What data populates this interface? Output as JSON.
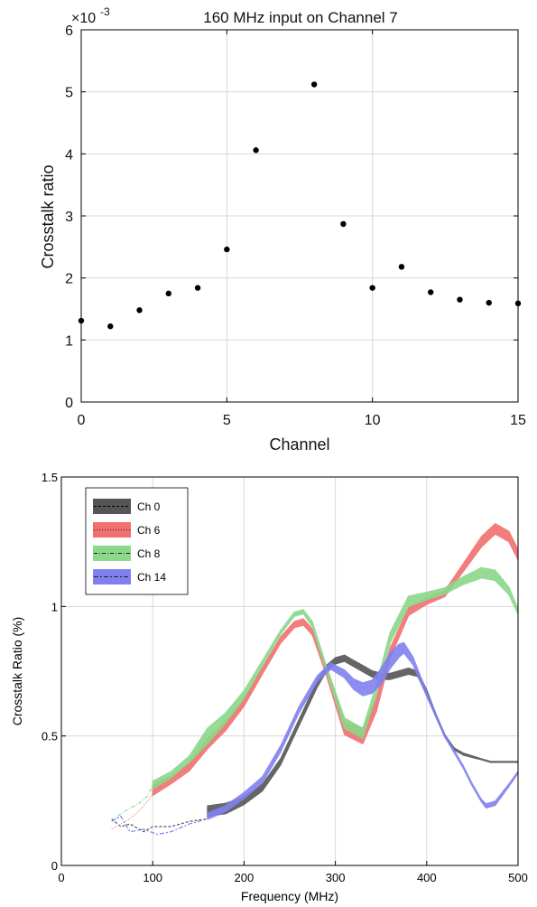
{
  "chart_data": [
    {
      "type": "scatter",
      "title": "160 MHz input on Channel 7",
      "xlabel": "Channel",
      "ylabel": "Crosstalk ratio",
      "y_multiplier_label": "×10",
      "y_multiplier_exp": "-3",
      "xlim": [
        0,
        15
      ],
      "ylim": [
        0,
        6
      ],
      "xticks": [
        0,
        5,
        10,
        15
      ],
      "yticks": [
        0,
        1,
        2,
        3,
        4,
        5,
        6
      ],
      "grid": true,
      "x": [
        0,
        1,
        2,
        3,
        4,
        5,
        6,
        8,
        9,
        10,
        11,
        12,
        13,
        14,
        15
      ],
      "y": [
        1.31,
        1.22,
        1.48,
        1.75,
        1.84,
        2.46,
        4.06,
        5.12,
        2.87,
        1.84,
        2.18,
        1.77,
        1.65,
        1.6,
        1.59
      ],
      "marker_color": "#000000"
    },
    {
      "type": "line",
      "title": "",
      "xlabel": "Frequency (MHz)",
      "ylabel": "Crosstalk Ratio (%)",
      "xlim": [
        0,
        500
      ],
      "ylim": [
        0,
        1.5
      ],
      "xticks": [
        0,
        100,
        200,
        300,
        400,
        500
      ],
      "yticks": [
        0,
        0.5,
        1,
        1.5
      ],
      "ytick_labels": [
        "0",
        "0.5",
        "1",
        "1.5"
      ],
      "grid": true,
      "legend_position": "top-left",
      "series": [
        {
          "name": "Ch 0",
          "color": "#555555",
          "dash": "3,2",
          "dashed_x": [
            55,
            65,
            75,
            90,
            100,
            120,
            140,
            160
          ],
          "dashed_y": [
            0.18,
            0.15,
            0.16,
            0.13,
            0.15,
            0.15,
            0.17,
            0.18
          ],
          "band_x": [
            160,
            180,
            200,
            220,
            240,
            260,
            280,
            290,
            300,
            310,
            320,
            330,
            340,
            350,
            360,
            370,
            380,
            390,
            400,
            410,
            420,
            430,
            440,
            450,
            460,
            470,
            480,
            490,
            500
          ],
          "band_y": [
            0.21,
            0.22,
            0.25,
            0.3,
            0.4,
            0.55,
            0.7,
            0.76,
            0.79,
            0.8,
            0.78,
            0.76,
            0.74,
            0.73,
            0.73,
            0.74,
            0.75,
            0.74,
            0.67,
            0.58,
            0.5,
            0.45,
            0.43,
            0.42,
            0.41,
            0.4,
            0.4,
            0.4,
            0.4
          ],
          "band_halfwidth": [
            0.02,
            0.02,
            0.015,
            0.013,
            0.012,
            0.012,
            0.012,
            0.012,
            0.012,
            0.012,
            0.012,
            0.012,
            0.012,
            0.012,
            0.012,
            0.012,
            0.012,
            0.01,
            0.008,
            0.006,
            0.005,
            0.004,
            0.004,
            0.003,
            0.002,
            0.002,
            0.002,
            0.002,
            0.002
          ]
        },
        {
          "name": "Ch 6",
          "color": "#f07070",
          "dash": "1,2",
          "dashed_x": [
            55,
            65,
            75,
            85,
            95,
            100
          ],
          "dashed_y": [
            0.14,
            0.16,
            0.18,
            0.21,
            0.25,
            0.28
          ],
          "band_x": [
            100,
            120,
            140,
            160,
            180,
            200,
            220,
            240,
            255,
            265,
            275,
            290,
            310,
            330,
            345,
            360,
            380,
            400,
            420,
            440,
            460,
            475,
            490,
            500
          ],
          "band_y": [
            0.29,
            0.33,
            0.38,
            0.47,
            0.54,
            0.63,
            0.75,
            0.87,
            0.93,
            0.94,
            0.9,
            0.75,
            0.53,
            0.5,
            0.62,
            0.82,
            0.98,
            1.02,
            1.05,
            1.15,
            1.25,
            1.3,
            1.27,
            1.2
          ],
          "band_halfwidth": [
            0.02,
            0.015,
            0.015,
            0.02,
            0.018,
            0.015,
            0.012,
            0.012,
            0.012,
            0.012,
            0.012,
            0.015,
            0.025,
            0.03,
            0.025,
            0.02,
            0.015,
            0.012,
            0.012,
            0.015,
            0.02,
            0.02,
            0.02,
            0.02
          ]
        },
        {
          "name": "Ch 8",
          "color": "#8ad88a",
          "dash": "4,2,1,2",
          "dashed_x": [
            55,
            65,
            75,
            85,
            95,
            100
          ],
          "dashed_y": [
            0.17,
            0.2,
            0.22,
            0.24,
            0.27,
            0.31
          ],
          "band_x": [
            100,
            120,
            140,
            160,
            180,
            200,
            220,
            240,
            255,
            265,
            275,
            290,
            310,
            330,
            345,
            360,
            380,
            400,
            420,
            440,
            460,
            475,
            490,
            500
          ],
          "band_y": [
            0.31,
            0.35,
            0.41,
            0.5,
            0.57,
            0.66,
            0.78,
            0.9,
            0.97,
            0.98,
            0.93,
            0.76,
            0.55,
            0.51,
            0.68,
            0.88,
            1.02,
            1.04,
            1.06,
            1.1,
            1.13,
            1.12,
            1.06,
            0.98
          ],
          "band_halfwidth": [
            0.015,
            0.012,
            0.012,
            0.03,
            0.02,
            0.015,
            0.01,
            0.008,
            0.008,
            0.008,
            0.01,
            0.012,
            0.02,
            0.02,
            0.02,
            0.02,
            0.02,
            0.015,
            0.012,
            0.015,
            0.02,
            0.02,
            0.015,
            0.01
          ]
        },
        {
          "name": "Ch 14",
          "color": "#8080f0",
          "dash": "5,2,2,2",
          "dashed_x": [
            55,
            65,
            75,
            90,
            105,
            120,
            140,
            160
          ],
          "dashed_y": [
            0.17,
            0.19,
            0.13,
            0.14,
            0.12,
            0.13,
            0.16,
            0.18
          ],
          "band_x": [
            160,
            180,
            200,
            220,
            240,
            260,
            280,
            295,
            310,
            320,
            330,
            340,
            350,
            360,
            370,
            375,
            385,
            400,
            420,
            440,
            450,
            460,
            465,
            475,
            490,
            500
          ],
          "band_y": [
            0.19,
            0.22,
            0.27,
            0.33,
            0.45,
            0.6,
            0.72,
            0.77,
            0.74,
            0.7,
            0.68,
            0.69,
            0.73,
            0.79,
            0.83,
            0.84,
            0.79,
            0.66,
            0.5,
            0.38,
            0.31,
            0.25,
            0.23,
            0.24,
            0.31,
            0.36
          ],
          "band_halfwidth": [
            0.012,
            0.012,
            0.012,
            0.012,
            0.012,
            0.012,
            0.012,
            0.012,
            0.015,
            0.02,
            0.025,
            0.025,
            0.03,
            0.03,
            0.025,
            0.02,
            0.015,
            0.008,
            0.005,
            0.005,
            0.005,
            0.005,
            0.008,
            0.008,
            0.005,
            0.004
          ]
        }
      ]
    }
  ]
}
